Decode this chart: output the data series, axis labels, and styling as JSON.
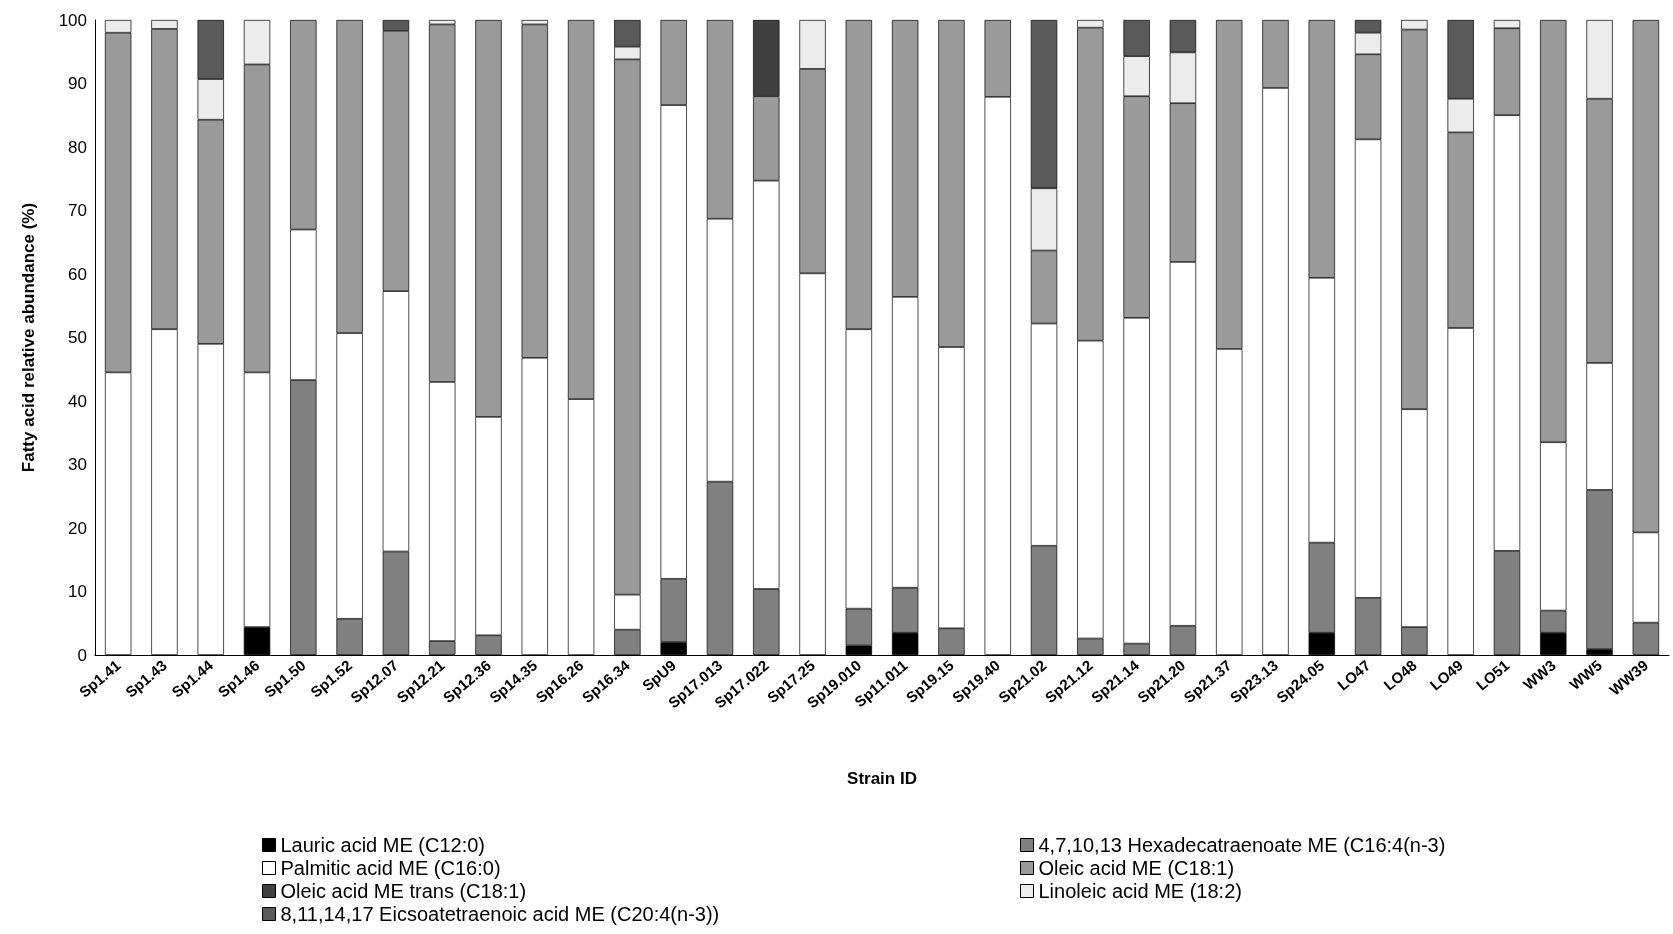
{
  "chart_data": {
    "type": "bar",
    "stacked": true,
    "xlabel": "Strain ID",
    "ylabel": "Fatty acid relative abundance (%)",
    "categories": [
      "Sp1.41",
      "Sp1.43",
      "Sp1.44",
      "Sp1.46",
      "Sp1.50",
      "Sp1.52",
      "Sp12.07",
      "Sp12.21",
      "Sp12.36",
      "Sp14.35",
      "Sp16.26",
      "Sp16.34",
      "SpU9",
      "Sp17.013",
      "Sp17.022",
      "Sp17.25",
      "Sp19.010",
      "Sp11.011",
      "Sp19.15",
      "Sp19.40",
      "Sp21.02",
      "Sp21.12",
      "Sp21.14",
      "Sp21.20",
      "Sp21.37",
      "Sp23.13",
      "Sp24.05",
      "LO47",
      "LO48",
      "LO49",
      "LO51",
      "WW3",
      "WW5",
      "WW39"
    ],
    "ylim": [
      0,
      100
    ],
    "yticks": [
      0,
      10,
      20,
      30,
      40,
      50,
      60,
      70,
      80,
      90,
      100
    ],
    "grid": false,
    "legend": "bottom",
    "series": [
      {
        "name": "Lauric acid ME (C12:0)",
        "color": "#000000",
        "values": [
          0,
          0,
          0,
          4.4,
          0,
          0,
          0,
          0,
          0,
          0,
          0,
          0,
          2,
          0,
          0,
          0,
          1.5,
          3.5,
          0,
          0,
          0,
          0,
          0,
          0,
          0,
          0,
          3.5,
          0,
          0,
          0,
          0,
          3.5,
          0.9,
          0
        ]
      },
      {
        "name": "4,7,10,13 Hexadecatraenoate ME (C16:4(n-3)",
        "color": "#808080",
        "values": [
          0,
          0,
          0,
          0,
          43.3,
          5.7,
          16.3,
          2.2,
          3.1,
          0,
          0,
          4,
          10,
          27.3,
          10.4,
          0,
          5.8,
          7.1,
          4.2,
          0,
          17.2,
          2.6,
          1.8,
          4.6,
          0,
          0,
          14.2,
          9,
          4.4,
          0,
          16.4,
          3.5,
          25.1,
          5.1
        ]
      },
      {
        "name": "Palmitic acid ME (C16:0)",
        "color": "#ffffff",
        "values": [
          44.5,
          51.3,
          49,
          40.1,
          23.7,
          45,
          41,
          40.8,
          34.4,
          46.8,
          40.3,
          5.5,
          74.6,
          41.4,
          64.3,
          60.1,
          44,
          45.8,
          44.3,
          87.9,
          35,
          46.9,
          51.3,
          57.3,
          48.2,
          89.3,
          41.7,
          72.2,
          34.3,
          51.5,
          68.6,
          26.5,
          20,
          14.2
        ]
      },
      {
        "name": "Oleic acid ME (C18:1)",
        "color": "#9a9a9a",
        "values": [
          53.5,
          47.3,
          35.3,
          48.5,
          33,
          49.3,
          41,
          56.3,
          62.5,
          52.5,
          59.7,
          84.3,
          13.4,
          31.3,
          13.3,
          32.2,
          48.7,
          43.6,
          51.5,
          12.1,
          11.5,
          49.3,
          34.9,
          25,
          51.8,
          10.7,
          40.6,
          13.4,
          59.8,
          30.8,
          13.7,
          66.5,
          41.6,
          80.7
        ]
      },
      {
        "name": "Oleic acid ME trans (C18:1)",
        "color": "#404040",
        "values": [
          0,
          0,
          0,
          0,
          0,
          0,
          0,
          0,
          0,
          0,
          0,
          0,
          0,
          0,
          12,
          0,
          0,
          0,
          0,
          0,
          0,
          0,
          0,
          0,
          0,
          0,
          0,
          0,
          0,
          0,
          0,
          0,
          0,
          0
        ]
      },
      {
        "name": "Linoleic acid ME (18:2)",
        "color": "#ececec",
        "values": [
          2,
          1.4,
          6.4,
          7,
          0,
          0,
          0,
          0.7,
          0,
          0.7,
          0,
          2,
          0,
          0,
          0,
          7.7,
          0,
          0,
          0,
          0,
          9.8,
          1.2,
          6.3,
          8,
          0,
          0,
          0,
          3.4,
          1.5,
          5.3,
          1.3,
          0,
          12.4,
          0
        ]
      },
      {
        "name": "8,11,14,17 Eicsoatetraenoic acid ME (C20:4(n-3))",
        "color": "#5a5a5a",
        "values": [
          0,
          0,
          9.3,
          0,
          0,
          0,
          1.7,
          0,
          0,
          0,
          0,
          4.2,
          0,
          0,
          0,
          0,
          0,
          0,
          0,
          0,
          26.5,
          0,
          5.7,
          5.1,
          0,
          0,
          0,
          2,
          0,
          12.4,
          0,
          0,
          0,
          0
        ]
      }
    ]
  }
}
